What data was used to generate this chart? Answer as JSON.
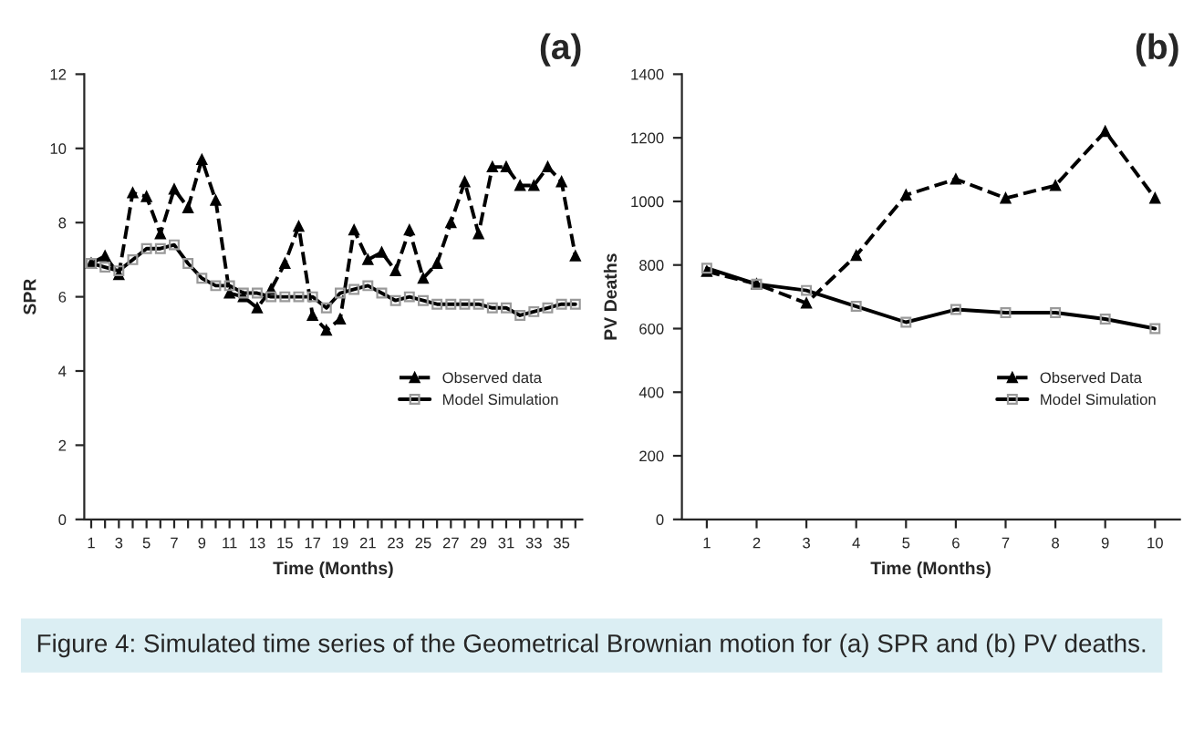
{
  "chart_data": [
    {
      "type": "line",
      "title": "(a)",
      "xlabel": "Time (Months)",
      "ylabel": "SPR",
      "categories": [
        "1",
        null,
        "3",
        null,
        "5",
        null,
        "7",
        null,
        "9",
        null,
        "11",
        null,
        "13",
        null,
        "15",
        null,
        "17",
        null,
        "19",
        null,
        "21",
        null,
        "23",
        null,
        "25",
        null,
        "27",
        null,
        "29",
        null,
        "31",
        null,
        "33",
        null,
        "35",
        null
      ],
      "series": [
        {
          "name": "Observed data",
          "color": "#000000",
          "marker": "triangle",
          "line_style": "dashed",
          "values": [
            6.9,
            7.1,
            6.6,
            8.8,
            8.7,
            7.7,
            8.9,
            8.4,
            9.7,
            8.6,
            6.1,
            6.0,
            5.7,
            6.2,
            6.9,
            7.9,
            5.5,
            5.1,
            5.4,
            7.8,
            7.0,
            7.2,
            6.7,
            7.8,
            6.5,
            6.9,
            8.0,
            9.1,
            7.7,
            9.5,
            9.5,
            9.0,
            9.0,
            9.5,
            9.1,
            7.1
          ]
        },
        {
          "name": "Model Simulation",
          "color": "#000000",
          "marker": "square",
          "line_style": "solid",
          "values": [
            6.9,
            6.8,
            6.7,
            7.0,
            7.3,
            7.3,
            7.4,
            6.9,
            6.5,
            6.3,
            6.3,
            6.1,
            6.1,
            6.0,
            6.0,
            6.0,
            6.0,
            5.7,
            6.1,
            6.2,
            6.3,
            6.1,
            5.9,
            6.0,
            5.9,
            5.8,
            5.8,
            5.8,
            5.8,
            5.7,
            5.7,
            5.5,
            5.6,
            5.7,
            5.8,
            5.8
          ]
        }
      ],
      "ylim": [
        0,
        12
      ],
      "yticks": [
        0,
        2,
        4,
        6,
        8,
        10,
        12
      ],
      "grid": false,
      "legend": "bottom right",
      "annotations": [
        "Figure 4: Simulated time series of the Geometrical Brownian motion for (a) SPR and (b) PV deaths."
      ]
    },
    {
      "type": "line",
      "title": "(b)",
      "xlabel": "Time (Months)",
      "ylabel": "PV Deaths",
      "categories": [
        "1",
        "2",
        "3",
        "4",
        "5",
        "6",
        "7",
        "8",
        "9",
        "10"
      ],
      "series": [
        {
          "name": "Observed Data",
          "color": "#000000",
          "marker": "triangle",
          "line_style": "dashed",
          "values": [
            780,
            740,
            680,
            830,
            1020,
            1070,
            1010,
            1050,
            1220,
            1010
          ]
        },
        {
          "name": "Model Simulation",
          "color": "#000000",
          "marker": "square",
          "line_style": "solid",
          "values": [
            790,
            740,
            720,
            670,
            620,
            660,
            650,
            650,
            630,
            600
          ]
        }
      ],
      "ylim": [
        0,
        1400
      ],
      "yticks": [
        0,
        200,
        400,
        600,
        800,
        1000,
        1200,
        1400
      ],
      "grid": false,
      "legend": "bottom right"
    }
  ]
}
